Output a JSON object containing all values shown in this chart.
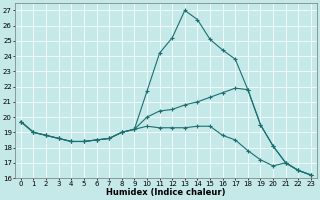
{
  "title": "",
  "xlabel": "Humidex (Indice chaleur)",
  "ylabel": "",
  "background_color": "#c5e8e8",
  "grid_color": "#ffffff",
  "line_color": "#1a7070",
  "x": [
    0,
    1,
    2,
    3,
    4,
    5,
    6,
    7,
    8,
    9,
    10,
    11,
    12,
    13,
    14,
    15,
    16,
    17,
    18,
    19,
    20,
    21,
    22,
    23
  ],
  "line1": [
    19.7,
    19.0,
    18.8,
    18.6,
    18.4,
    18.4,
    18.5,
    18.6,
    19.0,
    19.2,
    21.7,
    24.2,
    25.2,
    27.0,
    26.4,
    25.1,
    24.4,
    23.8,
    21.8,
    19.5,
    18.1,
    17.0,
    16.5,
    16.2
  ],
  "line2": [
    19.7,
    19.0,
    18.8,
    18.6,
    18.4,
    18.4,
    18.5,
    18.6,
    19.0,
    19.2,
    20.0,
    20.4,
    20.5,
    20.8,
    21.0,
    21.3,
    21.6,
    21.9,
    21.8,
    19.5,
    18.1,
    17.0,
    16.5,
    16.2
  ],
  "line3": [
    19.7,
    19.0,
    18.8,
    18.6,
    18.4,
    18.4,
    18.5,
    18.6,
    19.0,
    19.2,
    19.4,
    19.3,
    19.3,
    19.3,
    19.4,
    19.4,
    18.8,
    18.5,
    17.8,
    17.2,
    16.8,
    17.0,
    16.5,
    16.2
  ],
  "ylim": [
    16,
    27.5
  ],
  "yticks": [
    16,
    17,
    18,
    19,
    20,
    21,
    22,
    23,
    24,
    25,
    26,
    27
  ],
  "xlim": [
    -0.5,
    23.5
  ],
  "xticks": [
    0,
    1,
    2,
    3,
    4,
    5,
    6,
    7,
    8,
    9,
    10,
    11,
    12,
    13,
    14,
    15,
    16,
    17,
    18,
    19,
    20,
    21,
    22,
    23
  ],
  "marker": "+"
}
